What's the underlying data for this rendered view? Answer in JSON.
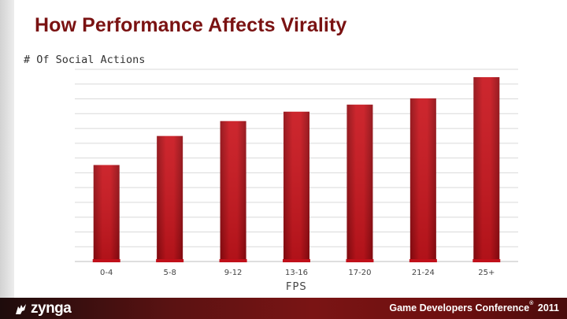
{
  "slide": {
    "title": "How Performance Affects Virality"
  },
  "footer": {
    "logo_text": "zynga",
    "logo_icon": "dog-icon",
    "conference": "Game Developers Conference",
    "registered": "®",
    "year": "2011"
  },
  "chart_data": {
    "type": "bar",
    "title": "",
    "xlabel": "FPS",
    "ylabel": "# Of Social Actions",
    "categories": [
      "0-4",
      "5-8",
      "9-12",
      "13-16",
      "17-20",
      "21-24",
      "25+"
    ],
    "values": [
      123,
      160,
      179,
      191,
      200,
      208,
      235
    ],
    "ylim": [
      0,
      245
    ],
    "grid": true,
    "bar_color": "#c0101a",
    "bar_color_dark": "#8e0a10"
  }
}
